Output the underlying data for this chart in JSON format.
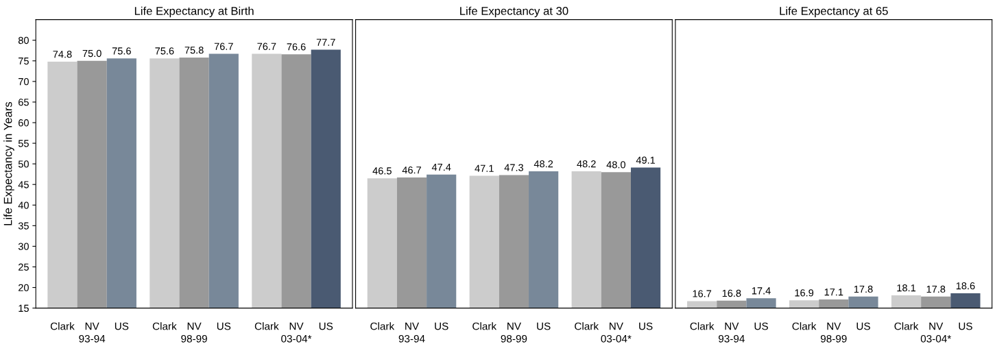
{
  "chart_data": [
    {
      "type": "bar",
      "title": "Life Expectancy at Birth",
      "ylabel": "Life Expectancy in Years",
      "categories": [
        "93-94",
        "98-99",
        "03-04*"
      ],
      "series": [
        {
          "name": "Clark",
          "color": "#cccccc",
          "values": [
            74.8,
            75.6,
            76.7
          ]
        },
        {
          "name": "NV",
          "color": "#999999",
          "values": [
            75.0,
            75.8,
            76.6
          ],
          "value_labels": [
            "75.0",
            "75.8",
            "76.6"
          ]
        },
        {
          "name": "US",
          "colors": [
            "#788899",
            "#788899",
            "#4a5a72"
          ],
          "values": [
            75.6,
            76.7,
            77.7
          ]
        }
      ],
      "ylim": [
        15,
        85
      ],
      "yticks": [
        15,
        20,
        25,
        30,
        35,
        40,
        45,
        50,
        55,
        60,
        65,
        70,
        75,
        80
      ],
      "data_labels": true,
      "grid": false,
      "legend": false
    },
    {
      "type": "bar",
      "title": "Life Expectancy at 30",
      "categories": [
        "93-94",
        "98-99",
        "03-04*"
      ],
      "series": [
        {
          "name": "Clark",
          "color": "#cccccc",
          "values": [
            46.5,
            47.1,
            48.2
          ]
        },
        {
          "name": "NV",
          "color": "#999999",
          "values": [
            46.7,
            47.3,
            48.0
          ],
          "value_labels": [
            "46.7",
            "47.3",
            "48.0"
          ]
        },
        {
          "name": "US",
          "colors": [
            "#788899",
            "#788899",
            "#4a5a72"
          ],
          "values": [
            47.4,
            48.2,
            49.1
          ]
        }
      ],
      "ylim": [
        15,
        85
      ],
      "yticks": [
        15,
        20,
        25,
        30,
        35,
        40,
        45,
        50,
        55,
        60,
        65,
        70,
        75,
        80
      ],
      "tick_labels": "x",
      "data_labels": true,
      "grid": false,
      "legend": false
    },
    {
      "type": "bar",
      "title": "Life Expectancy at 65",
      "categories": [
        "93-94",
        "98-99",
        "03-04*"
      ],
      "series": [
        {
          "name": "Clark",
          "color": "#cccccc",
          "values": [
            16.7,
            16.9,
            18.1
          ]
        },
        {
          "name": "NV",
          "color": "#999999",
          "values": [
            16.8,
            17.1,
            17.8
          ]
        },
        {
          "name": "US",
          "colors": [
            "#788899",
            "#788899",
            "#4a5a72"
          ],
          "values": [
            17.4,
            17.8,
            18.6
          ]
        }
      ],
      "ylim": [
        15,
        85
      ],
      "yticks": [
        15,
        20,
        25,
        30,
        35,
        40,
        45,
        50,
        55,
        60,
        65,
        70,
        75,
        80
      ],
      "tick_labels": "x",
      "data_labels": true,
      "grid": false,
      "legend": false
    }
  ]
}
